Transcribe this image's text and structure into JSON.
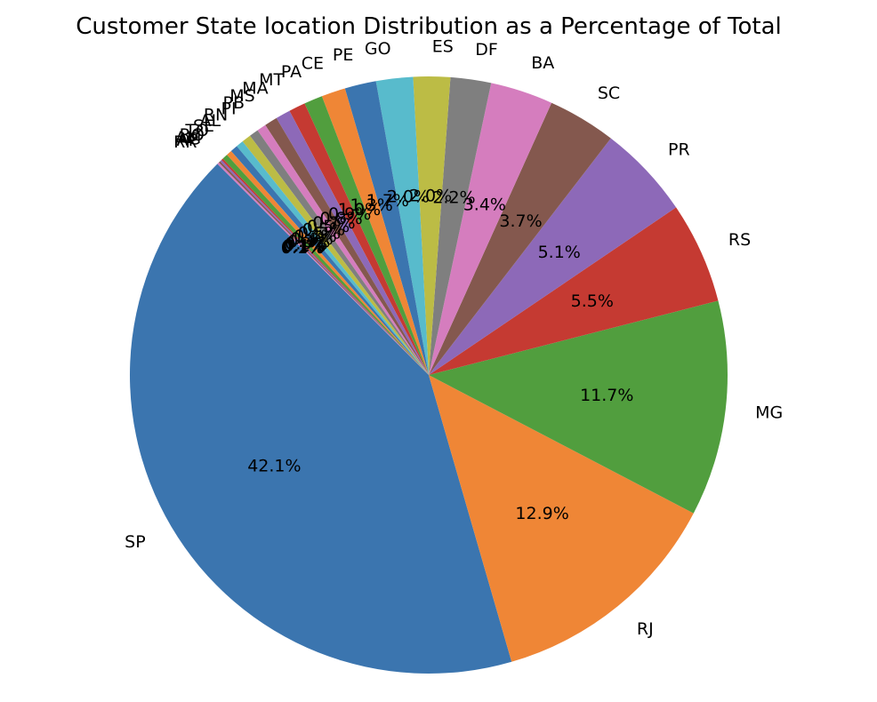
{
  "chart_data": {
    "type": "pie",
    "title": "Customer State location Distribution as a Percentage of Total",
    "start_angle_deg": 135,
    "direction": "counterclockwise",
    "label_format": "percent_one_decimal",
    "categories": [
      "SP",
      "RJ",
      "MG",
      "RS",
      "PR",
      "SC",
      "BA",
      "DF",
      "ES",
      "GO",
      "PE",
      "CE",
      "PA",
      "MT",
      "MA",
      "MS",
      "PB",
      "PI",
      "RN",
      "AL",
      "SE",
      "TO",
      "RO",
      "AM",
      "AC",
      "AP",
      "RR"
    ],
    "values": [
      42.1,
      12.9,
      11.7,
      5.5,
      5.1,
      3.7,
      3.4,
      2.2,
      2.0,
      2.0,
      1.7,
      1.3,
      1.0,
      0.9,
      0.8,
      0.7,
      0.5,
      0.5,
      0.5,
      0.4,
      0.4,
      0.3,
      0.3,
      0.1,
      0.1,
      0.1,
      0.1
    ],
    "colors": [
      "#3b75af",
      "#ef8636",
      "#519e3e",
      "#c53a32",
      "#8d69b8",
      "#84584e",
      "#d57dbe",
      "#7f7f7f",
      "#bcbc45",
      "#58bbcc"
    ]
  }
}
